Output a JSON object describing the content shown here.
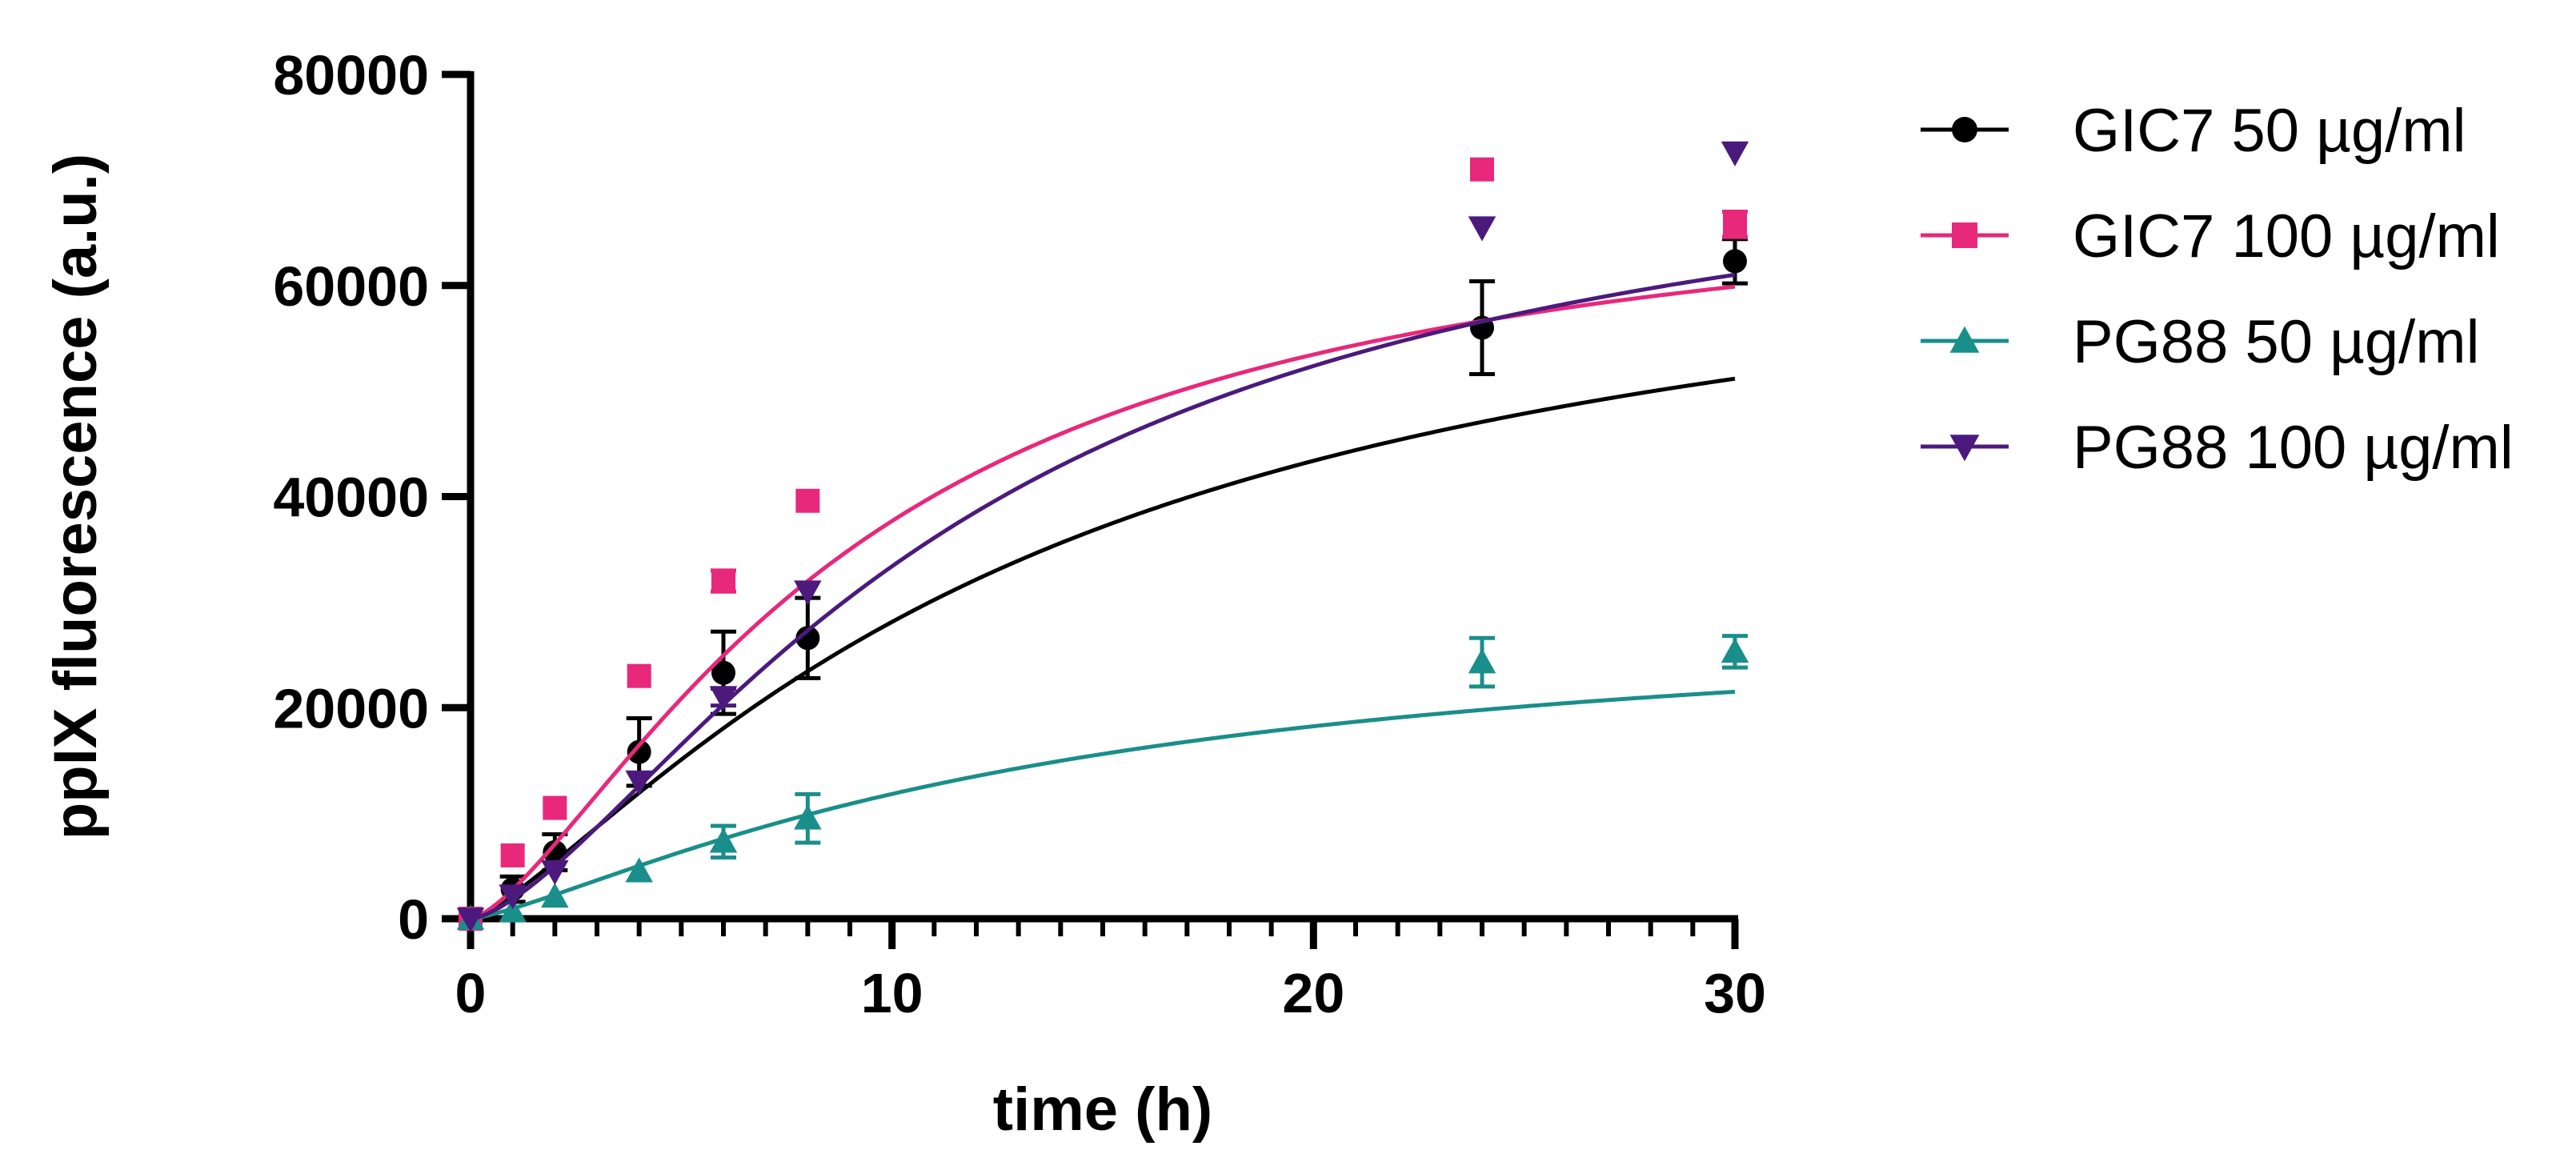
{
  "chart_data": {
    "type": "scatter",
    "title": "",
    "xlabel": "time (h)",
    "ylabel": "ppIX fluorescence (a.u.)",
    "xlim": [
      0,
      30
    ],
    "ylim": [
      0,
      80000
    ],
    "x_major_ticks": [
      0,
      10,
      20,
      30
    ],
    "x_minor_step": 1,
    "y_ticks": [
      0,
      20000,
      40000,
      60000,
      80000
    ],
    "x_tick_labels": [
      "0",
      "10",
      "20",
      "30"
    ],
    "y_tick_labels": [
      "0",
      "20000",
      "40000",
      "60000",
      "80000"
    ],
    "legend_position": "right",
    "series": [
      {
        "name": "GIC7 50 µg/ml",
        "color": "#000000",
        "marker": "circle",
        "x": [
          0,
          1,
          2,
          4,
          6,
          8,
          24,
          30
        ],
        "y": [
          0,
          2800,
          6300,
          15800,
          23300,
          26600,
          56000,
          62300
        ],
        "error": [
          0,
          1200,
          1700,
          3200,
          3900,
          3800,
          4400,
          2100
        ],
        "fit": {
          "ymax": 69000,
          "k": 0.075,
          "n": 1.3
        }
      },
      {
        "name": "GIC7 100 µg/ml",
        "color": "#E8287A",
        "marker": "square",
        "x": [
          0,
          1,
          2,
          4,
          6,
          8,
          24,
          30
        ],
        "y": [
          0,
          6000,
          10500,
          23000,
          32000,
          39600,
          71000,
          65800
        ],
        "error": [
          0,
          0,
          0,
          0,
          1000,
          0,
          0,
          1200
        ],
        "fit": {
          "ymax": 70500,
          "k": 0.11,
          "n": 1.45
        }
      },
      {
        "name": "PG88 50 µg/ml",
        "color": "#1A8E8A",
        "marker": "triangle",
        "x": [
          0,
          1,
          2,
          4,
          6,
          8,
          24,
          30
        ],
        "y": [
          0,
          700,
          2100,
          4500,
          7300,
          9500,
          24300,
          25300
        ],
        "error": [
          0,
          0,
          0,
          0,
          1500,
          2300,
          2300,
          1500
        ],
        "fit": {
          "ymax": 29000,
          "k": 0.075,
          "n": 1.3
        }
      },
      {
        "name": "PG88 100 µg/ml",
        "color": "#4B1A7C",
        "marker": "triangle-down",
        "x": [
          0,
          1,
          2,
          4,
          6,
          8,
          24,
          30
        ],
        "y": [
          0,
          2200,
          4500,
          13000,
          21000,
          31000,
          65500,
          72600
        ],
        "error": [
          0,
          0,
          0,
          0,
          800,
          0,
          0,
          0
        ],
        "fit": {
          "ymax": 76000,
          "k": 0.085,
          "n": 1.5
        }
      }
    ]
  }
}
